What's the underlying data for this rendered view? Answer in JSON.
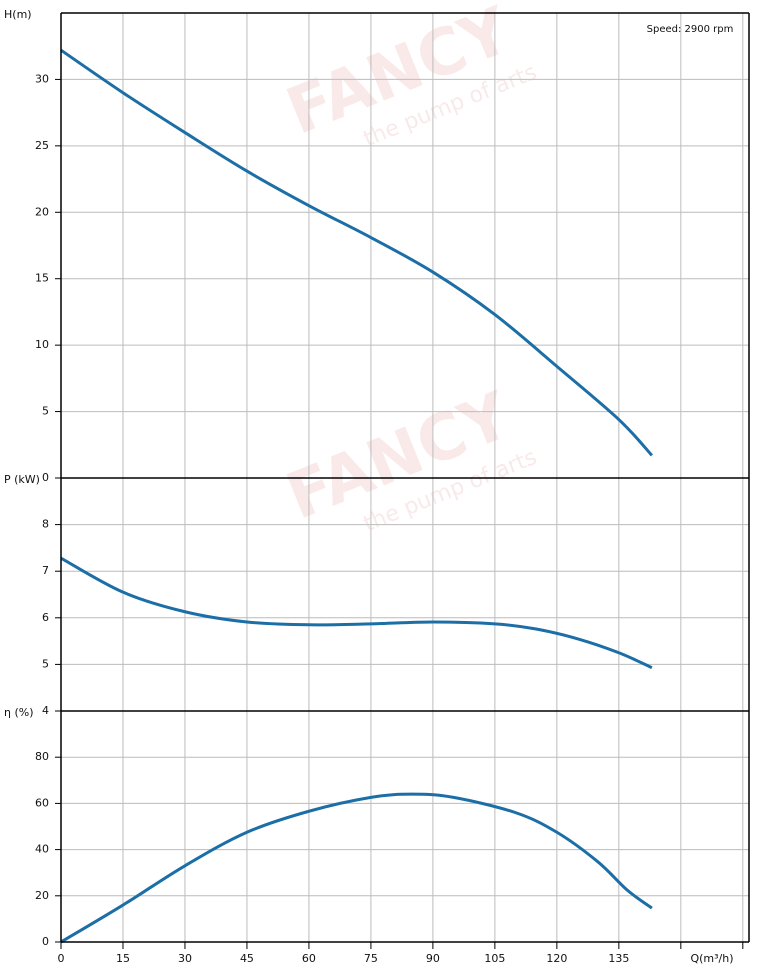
{
  "watermark": {
    "brand": "FANCY",
    "tagline": "the pump of arts"
  },
  "chart_data": [
    {
      "type": "line",
      "ylabel": "H(m)",
      "annotation": "Speed: 2900 rpm",
      "x": [
        0,
        15,
        30,
        45,
        60,
        75,
        90,
        105,
        120,
        135,
        143
      ],
      "series": [
        {
          "name": "H",
          "color": "#1b6ea6",
          "values": [
            32.2,
            29.0,
            26.0,
            23.1,
            20.5,
            18.1,
            15.5,
            12.3,
            8.4,
            4.4,
            1.7
          ]
        }
      ],
      "xlim": [
        0,
        166.5
      ],
      "ylim": [
        0,
        35
      ],
      "yticks": [
        0,
        5,
        10,
        15,
        20,
        25,
        30
      ],
      "grid": true
    },
    {
      "type": "line",
      "ylabel": "P (kW)",
      "x": [
        0,
        15,
        30,
        45,
        60,
        75,
        90,
        105,
        115,
        125,
        135,
        143
      ],
      "series": [
        {
          "name": "P",
          "color": "#1b6ea6",
          "values": [
            7.28,
            6.55,
            6.13,
            5.91,
            5.85,
            5.87,
            5.91,
            5.87,
            5.76,
            5.55,
            5.25,
            4.93
          ]
        }
      ],
      "xlim": [
        0,
        166.5
      ],
      "ylim": [
        4,
        9
      ],
      "yticks": [
        4,
        5,
        6,
        7,
        8
      ],
      "grid": true
    },
    {
      "type": "line",
      "ylabel": "η (%)",
      "xlabel": "Q(m³/h)",
      "x": [
        0,
        15,
        30,
        45,
        60,
        75,
        85,
        95,
        110,
        120,
        130,
        137,
        143
      ],
      "series": [
        {
          "name": "η",
          "color": "#1b6ea6",
          "values": [
            0,
            16,
            33,
            47.5,
            56.6,
            62.6,
            64,
            62.6,
            56,
            47.5,
            34.6,
            22.5,
            14.7
          ]
        }
      ],
      "xlim": [
        0,
        166.5
      ],
      "ylim": [
        0,
        100
      ],
      "yticks": [
        0,
        20,
        40,
        60,
        80
      ],
      "xticks": [
        0,
        15,
        30,
        45,
        60,
        75,
        90,
        105,
        120,
        135
      ],
      "xgrid": [
        150,
        165
      ],
      "grid": true
    }
  ]
}
